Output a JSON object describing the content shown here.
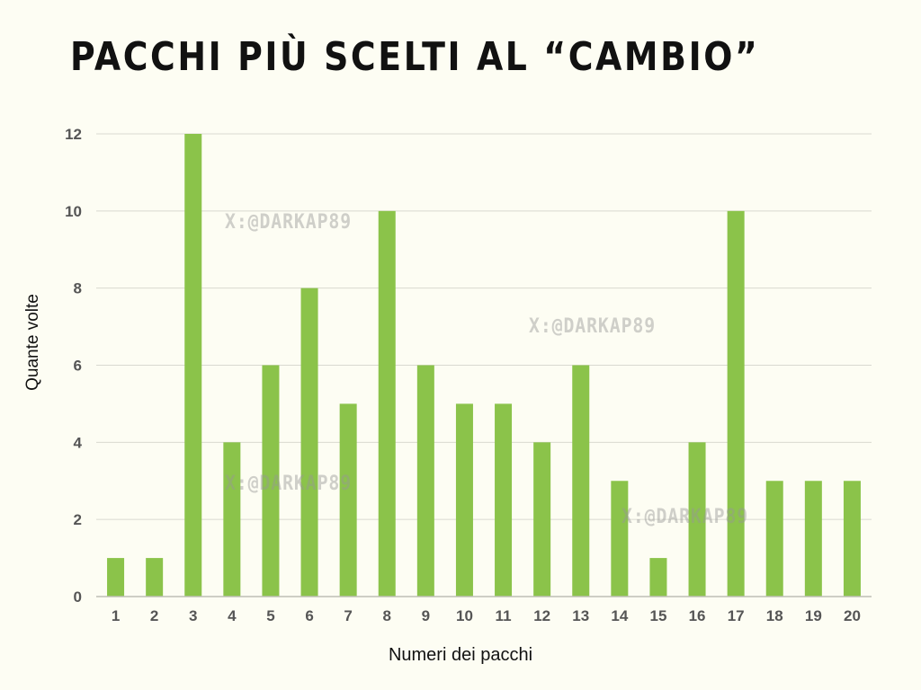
{
  "title": "PACCHI PIÙ SCELTI AL “CAMBIO”",
  "watermarks": [
    "X:@DARKAP89",
    "X:@DARKAP89",
    "X:@DARKAP89",
    "X:@DARKAP89"
  ],
  "colors": {
    "bar": "#8bc34a",
    "grid": "#d9d9d0",
    "axis": "#bfbfb6",
    "tick": "#555555",
    "background": "#fdfdf3"
  },
  "chart_data": {
    "type": "bar",
    "xlabel": "Numeri dei pacchi",
    "ylabel": "Quante volte",
    "categories": [
      "1",
      "2",
      "3",
      "4",
      "5",
      "6",
      "7",
      "8",
      "9",
      "10",
      "11",
      "12",
      "13",
      "14",
      "15",
      "16",
      "17",
      "18",
      "19",
      "20"
    ],
    "values": [
      1,
      1,
      12,
      4,
      6,
      8,
      5,
      10,
      6,
      5,
      5,
      4,
      6,
      3,
      1,
      4,
      10,
      3,
      3,
      3
    ],
    "ylim": [
      0,
      12
    ],
    "yticks": [
      0,
      2,
      4,
      6,
      8,
      10,
      12
    ],
    "grid": true,
    "legend": "none"
  }
}
